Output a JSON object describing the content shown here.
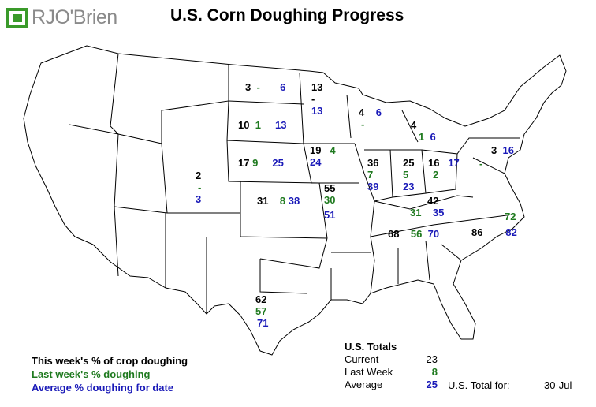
{
  "logo": {
    "text": "RJO'Brien"
  },
  "title": "U.S. Corn Doughing Progress",
  "states": [
    {
      "id": "nd",
      "current": "3",
      "last": "-",
      "avg": "6"
    },
    {
      "id": "mn",
      "current": "13",
      "last": "-",
      "avg": "13"
    },
    {
      "id": "sd",
      "current": "10",
      "last": "1",
      "avg": "13"
    },
    {
      "id": "wi",
      "current": "4",
      "last": "-",
      "avg": "6"
    },
    {
      "id": "mi",
      "current": "4",
      "last": "1",
      "avg": "6"
    },
    {
      "id": "ne",
      "current": "17",
      "last": "9",
      "avg": "25"
    },
    {
      "id": "ia",
      "current": "19",
      "last": "4",
      "avg": "24"
    },
    {
      "id": "il",
      "current": "36",
      "last": "7",
      "avg": "39"
    },
    {
      "id": "in",
      "current": "25",
      "last": "5",
      "avg": "23"
    },
    {
      "id": "oh",
      "current": "16",
      "last": "2",
      "avg": "17"
    },
    {
      "id": "pa",
      "current": "3",
      "last": "-",
      "avg": "16"
    },
    {
      "id": "co",
      "current": "2",
      "last": "-",
      "avg": "3"
    },
    {
      "id": "ks",
      "current": "31",
      "last": "8",
      "avg": "38"
    },
    {
      "id": "mo",
      "current": "55",
      "last": "30",
      "avg": "51"
    },
    {
      "id": "ky",
      "current": "42",
      "last": "31",
      "avg": "35"
    },
    {
      "id": "tn",
      "current": "68",
      "last": "56",
      "avg": "70"
    },
    {
      "id": "nc",
      "current": "86",
      "last": "72",
      "avg": "82"
    },
    {
      "id": "tx",
      "current": "62",
      "last": "57",
      "avg": "71"
    }
  ],
  "legend": {
    "current": "This week's % of crop doughing",
    "last": "Last week's % doughing",
    "avg": "Average % doughing for date"
  },
  "totals": {
    "header": "U.S. Totals",
    "current_label": "Current",
    "current_value": "23",
    "last_label": "Last Week",
    "last_value": "8",
    "avg_label": "Average",
    "avg_value": "25",
    "for_label": "U.S. Total for:",
    "date": "30-Jul"
  },
  "colors": {
    "current": "#000000",
    "last": "#1f7a1f",
    "avg": "#1a1ab8",
    "logo_green": "#3a9a2a",
    "logo_gray": "#8a8a8a"
  }
}
